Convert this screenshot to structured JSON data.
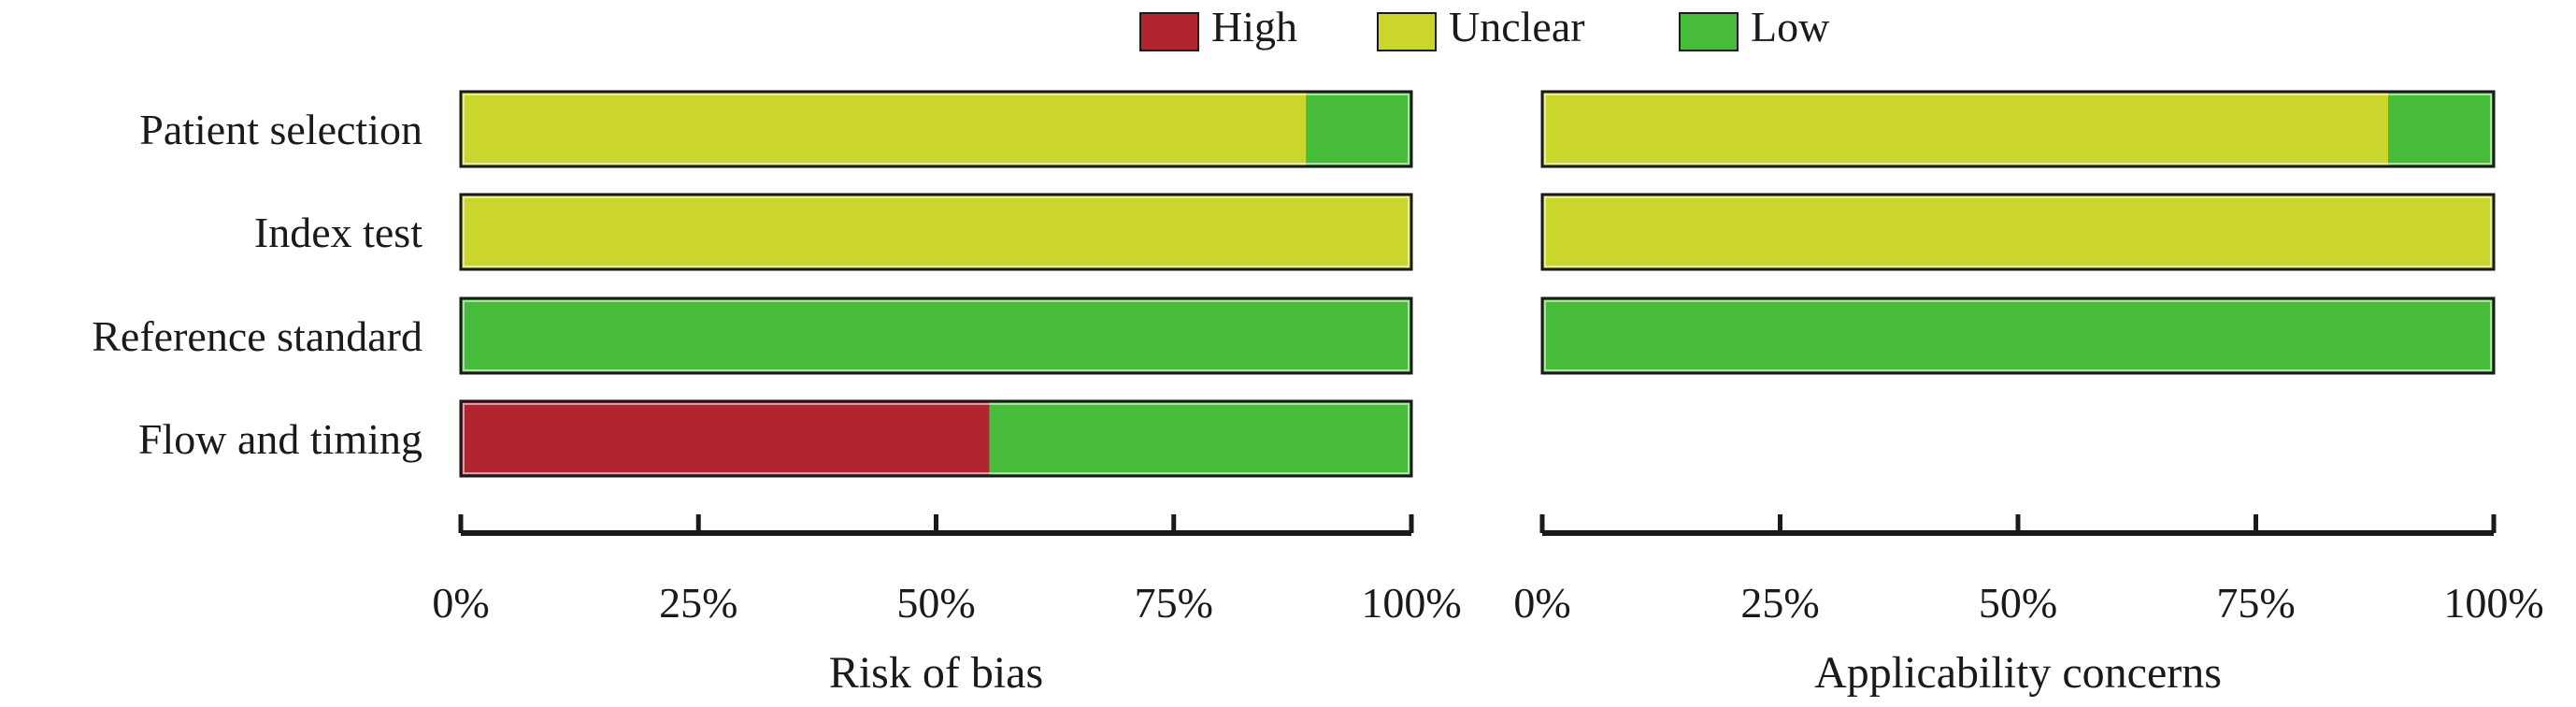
{
  "legend": [
    {
      "label": "High",
      "color": "#b22430"
    },
    {
      "label": "Unclear",
      "color": "#cad62b"
    },
    {
      "label": "Low",
      "color": "#47bc3b"
    }
  ],
  "chart_data": [
    {
      "type": "bar",
      "orientation": "horizontal",
      "stacked": true,
      "title": "",
      "xlabel": "Risk of bias",
      "ylabel": "",
      "xlim": [
        0,
        100
      ],
      "x_ticks": [
        "0%",
        "25%",
        "50%",
        "75%",
        "100%"
      ],
      "categories": [
        "Patient selection",
        "Index test",
        "Reference standard",
        "Flow and timing"
      ],
      "series": [
        {
          "name": "High",
          "values": [
            0,
            0,
            0,
            55.6
          ]
        },
        {
          "name": "Unclear",
          "values": [
            88.9,
            100,
            0,
            0
          ]
        },
        {
          "name": "Low",
          "values": [
            11.1,
            0,
            100,
            44.4
          ]
        }
      ]
    },
    {
      "type": "bar",
      "orientation": "horizontal",
      "stacked": true,
      "title": "",
      "xlabel": "Applicability concerns",
      "ylabel": "",
      "xlim": [
        0,
        100
      ],
      "x_ticks": [
        "0%",
        "25%",
        "50%",
        "75%",
        "100%"
      ],
      "categories": [
        "Patient selection",
        "Index test",
        "Reference standard"
      ],
      "series": [
        {
          "name": "High",
          "values": [
            0,
            0,
            0
          ]
        },
        {
          "name": "Unclear",
          "values": [
            88.9,
            100,
            0
          ]
        },
        {
          "name": "Low",
          "values": [
            11.1,
            0,
            100
          ]
        }
      ]
    }
  ]
}
